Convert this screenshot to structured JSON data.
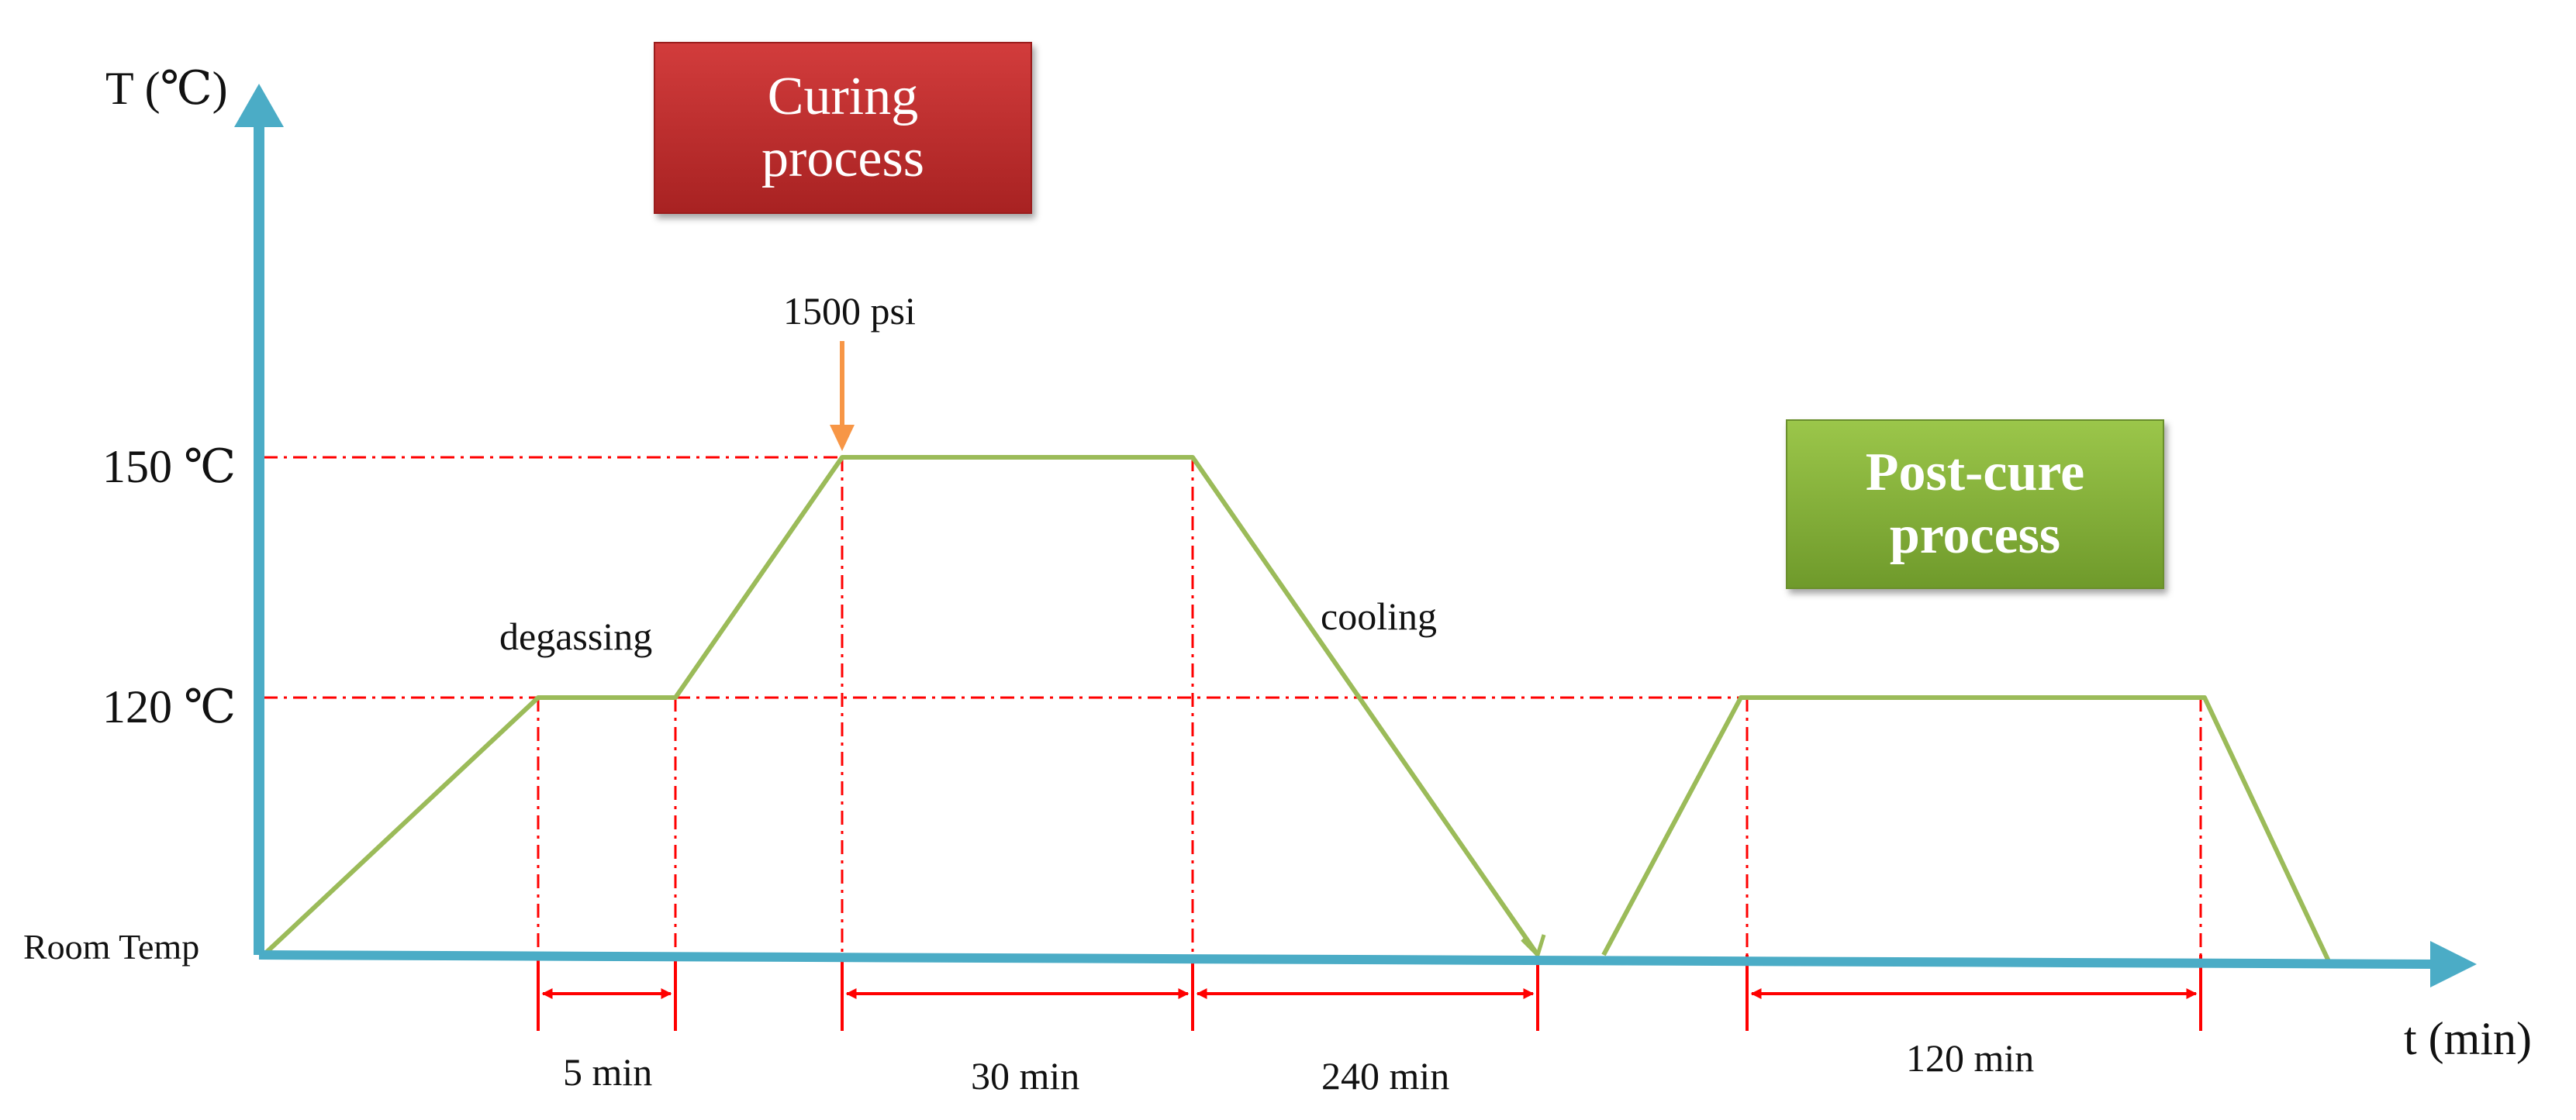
{
  "axes": {
    "y_label": "T (℃)",
    "x_label": "t (min)"
  },
  "levels": {
    "high": "150 ℃",
    "mid": "120 ℃",
    "room": "Room Temp"
  },
  "boxes": {
    "curing": "Curing\nprocess",
    "postcure": "Post-cure\nprocess"
  },
  "annotations": {
    "pressure": "1500 psi",
    "degassing": "degassing",
    "cooling": "cooling"
  },
  "durations": {
    "d1": "5 min",
    "d2": "30 min",
    "d3": "240 min",
    "d4": "120 min"
  },
  "colors": {
    "axis": "#4bacc6",
    "profile": "#9bbb59",
    "guide": "#ff0000",
    "pressure_arrow": "#f79646"
  }
}
